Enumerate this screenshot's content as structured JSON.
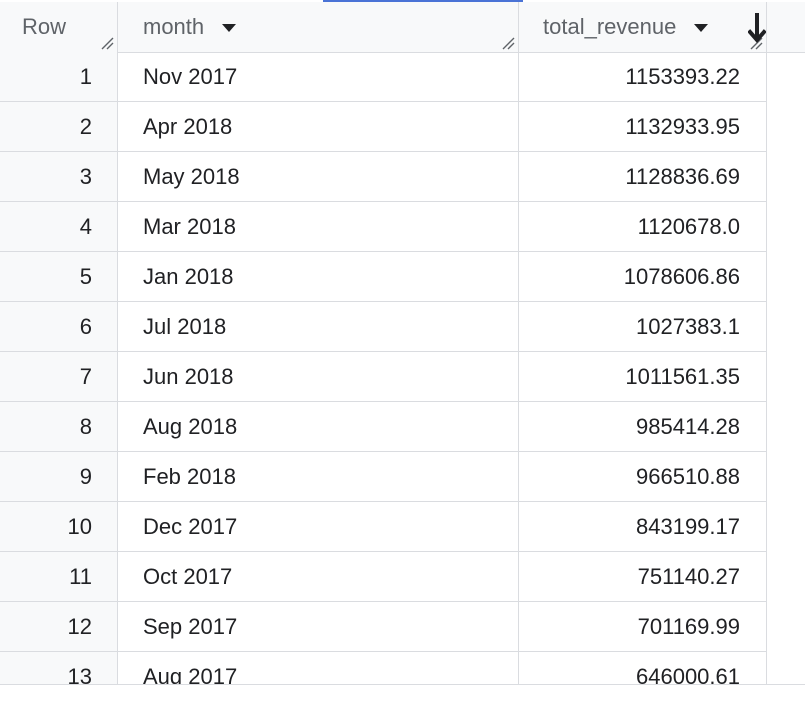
{
  "table": {
    "columns": {
      "row": "Row",
      "month": "month",
      "total_revenue": "total_revenue"
    },
    "sort": {
      "column": "total_revenue",
      "direction": "descending"
    },
    "rows": [
      {
        "row": "1",
        "month": "Nov 2017",
        "total_revenue": "1153393.22"
      },
      {
        "row": "2",
        "month": "Apr 2018",
        "total_revenue": "1132933.95"
      },
      {
        "row": "3",
        "month": "May 2018",
        "total_revenue": "1128836.69"
      },
      {
        "row": "4",
        "month": "Mar 2018",
        "total_revenue": "1120678.0"
      },
      {
        "row": "5",
        "month": "Jan 2018",
        "total_revenue": "1078606.86"
      },
      {
        "row": "6",
        "month": "Jul 2018",
        "total_revenue": "1027383.1"
      },
      {
        "row": "7",
        "month": "Jun 2018",
        "total_revenue": "1011561.35"
      },
      {
        "row": "8",
        "month": "Aug 2018",
        "total_revenue": "985414.28"
      },
      {
        "row": "9",
        "month": "Feb 2018",
        "total_revenue": "966510.88"
      },
      {
        "row": "10",
        "month": "Dec 2017",
        "total_revenue": "843199.17"
      },
      {
        "row": "11",
        "month": "Oct 2017",
        "total_revenue": "751140.27"
      },
      {
        "row": "12",
        "month": "Sep 2017",
        "total_revenue": "701169.99"
      },
      {
        "row": "13",
        "month": "Aug 2017",
        "total_revenue": "646000.61"
      }
    ]
  },
  "icons": {
    "sort": "sort-arrow-down-icon",
    "resize": "column-resize-handle-icon",
    "cursor": "mouse-cursor-icon"
  },
  "colors": {
    "header_bg": "#f8f9fa",
    "grid_line": "#dadce0",
    "header_text": "#5f6368",
    "cell_text": "#202124",
    "accent": "#4a73d6"
  }
}
